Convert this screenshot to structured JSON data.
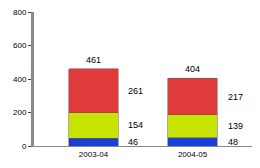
{
  "chart_data": {
    "type": "bar",
    "stacked": true,
    "data_labels": true,
    "grid": false,
    "categories": [
      "2003-04",
      "2004-05"
    ],
    "series": [
      {
        "color": "#1a3fd6",
        "values": [
          46,
          48
        ]
      },
      {
        "color": "#c6e400",
        "values": [
          154,
          139
        ]
      },
      {
        "color": "#e03a3a",
        "values": [
          261,
          217
        ]
      }
    ],
    "totals": [
      461,
      404
    ],
    "ylim": [
      0,
      800
    ],
    "yticks": [
      0,
      200,
      400,
      600,
      800
    ]
  }
}
